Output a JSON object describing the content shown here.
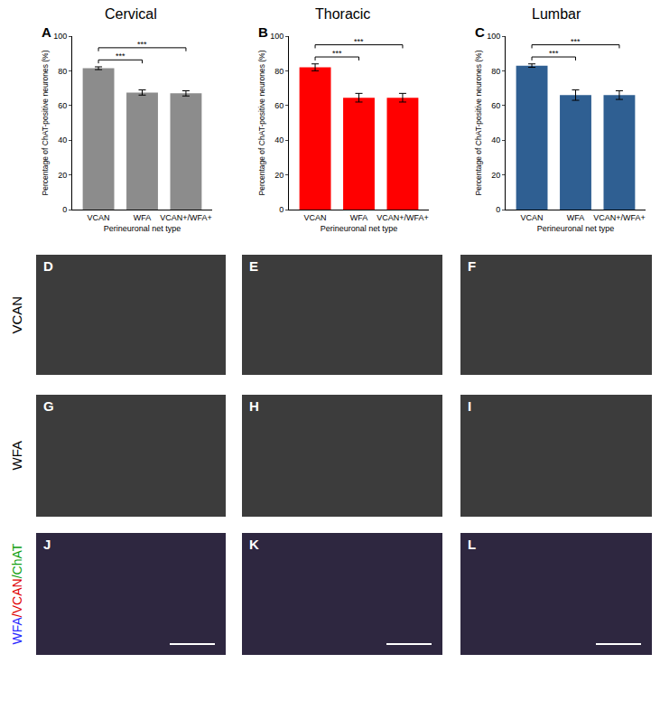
{
  "chart_data": [
    {
      "type": "bar",
      "panel_label": "A",
      "title": "Cervical",
      "categories": [
        "VCAN",
        "WFA",
        "VCAN+/WFA+"
      ],
      "values": [
        81.5,
        67.5,
        67
      ],
      "error": [
        0.8,
        1.5,
        1.5
      ],
      "color": "#8c8c8c",
      "x_label": "Perineuronal net type",
      "y_label": "Percentage of ChAT-positive neurones (%)",
      "ylim": [
        0,
        100
      ],
      "yticks": [
        0,
        20,
        40,
        60,
        80,
        100
      ],
      "significance": [
        {
          "from": "VCAN",
          "to": "WFA",
          "label": "***"
        },
        {
          "from": "VCAN",
          "to": "VCAN+/WFA+",
          "label": "***"
        }
      ]
    },
    {
      "type": "bar",
      "panel_label": "B",
      "title": "Thoracic",
      "categories": [
        "VCAN",
        "WFA",
        "VCAN+/WFA+"
      ],
      "values": [
        82,
        64.5,
        64.5
      ],
      "error": [
        2,
        2.5,
        2.5
      ],
      "color": "#ff0000",
      "x_label": "Perineuronal net type",
      "y_label": "Percentage of ChAT-positive neurones (%)",
      "ylim": [
        0,
        100
      ],
      "yticks": [
        0,
        20,
        40,
        60,
        80,
        100
      ],
      "significance": [
        {
          "from": "VCAN",
          "to": "WFA",
          "label": "***"
        },
        {
          "from": "VCAN",
          "to": "VCAN+/WFA+",
          "label": "***"
        }
      ]
    },
    {
      "type": "bar",
      "panel_label": "C",
      "title": "Lumbar",
      "categories": [
        "VCAN",
        "WFA",
        "VCAN+/WFA+"
      ],
      "values": [
        83,
        66,
        66
      ],
      "error": [
        1,
        3,
        2.5
      ],
      "color": "#2f5f92",
      "x_label": "Perineuronal net type",
      "y_label": "Percentage of ChAT-positive neurones (%)",
      "ylim": [
        0,
        100
      ],
      "yticks": [
        0,
        20,
        40,
        60,
        80,
        100
      ],
      "significance": [
        {
          "from": "VCAN",
          "to": "WFA",
          "label": "***"
        },
        {
          "from": "VCAN",
          "to": "VCAN+/WFA+",
          "label": "***"
        }
      ]
    }
  ],
  "image_panels": {
    "panels": [
      [
        "D",
        "E",
        "F"
      ],
      [
        "G",
        "H",
        "I"
      ],
      [
        "J",
        "K",
        "L"
      ]
    ],
    "row_labels": [
      "VCAN",
      "WFA"
    ],
    "merge_label": [
      {
        "text": "WFA",
        "color": "#2a2aff"
      },
      {
        "text": "/VCAN",
        "color": "#e00000"
      },
      {
        "text": "/ChAT",
        "color": "#10a010"
      }
    ]
  }
}
